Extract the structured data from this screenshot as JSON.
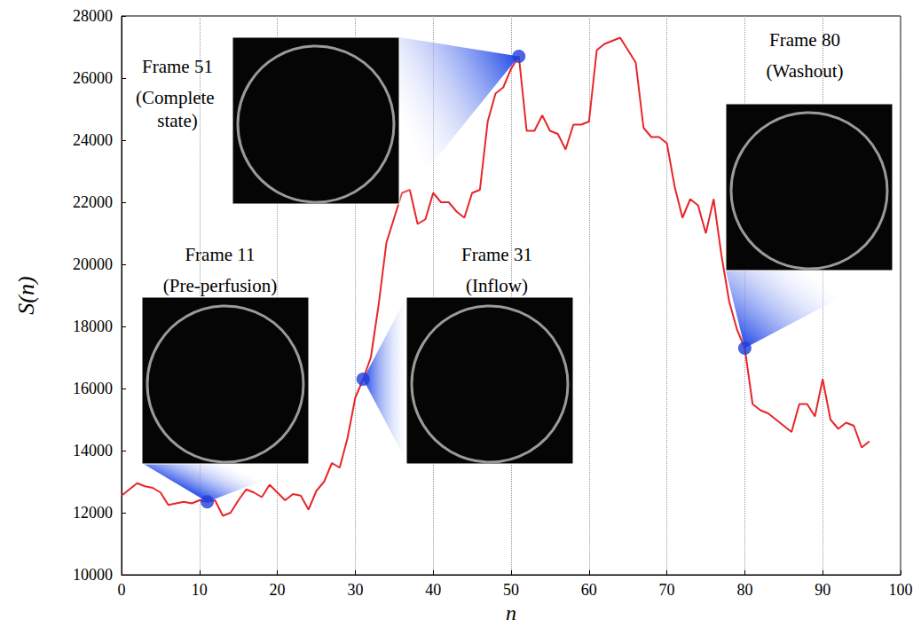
{
  "chart_data": {
    "type": "line",
    "x_label": "n",
    "y_label": "S(n)",
    "x": [
      0,
      1,
      2,
      3,
      4,
      5,
      6,
      7,
      8,
      9,
      10,
      11,
      12,
      13,
      14,
      15,
      16,
      17,
      18,
      19,
      20,
      21,
      22,
      23,
      24,
      25,
      26,
      27,
      28,
      29,
      30,
      31,
      32,
      33,
      34,
      35,
      36,
      37,
      38,
      39,
      40,
      41,
      42,
      43,
      44,
      45,
      46,
      47,
      48,
      49,
      50,
      51,
      52,
      53,
      54,
      55,
      56,
      57,
      58,
      59,
      60,
      61,
      62,
      63,
      64,
      65,
      66,
      67,
      68,
      69,
      70,
      71,
      72,
      73,
      74,
      75,
      76,
      77,
      78,
      79,
      80,
      81,
      82,
      83,
      84,
      85,
      86,
      87,
      88,
      89,
      90,
      91,
      92,
      93,
      94,
      95,
      96
    ],
    "values": [
      12550,
      12750,
      12950,
      12850,
      12800,
      12650,
      12250,
      12300,
      12350,
      12300,
      12400,
      12350,
      12400,
      11900,
      12000,
      12400,
      12750,
      12650,
      12500,
      12900,
      12650,
      12400,
      12600,
      12550,
      12100,
      12700,
      13000,
      13600,
      13450,
      14400,
      15700,
      16300,
      17000,
      18700,
      20700,
      21500,
      22300,
      22400,
      21300,
      21450,
      22300,
      22000,
      22000,
      21700,
      21500,
      22300,
      22400,
      24600,
      25500,
      25700,
      26300,
      26700,
      24300,
      24300,
      24800,
      24300,
      24200,
      23700,
      24500,
      24500,
      24600,
      26900,
      27100,
      27200,
      27300,
      26900,
      26500,
      24400,
      24100,
      24100,
      23900,
      22500,
      21500,
      22100,
      21900,
      21000,
      22100,
      20300,
      18800,
      17900,
      17300,
      15500,
      15300,
      15200,
      15000,
      14800,
      14600,
      15500,
      15500,
      15100,
      16300,
      15000,
      14700,
      14900,
      14800,
      14100,
      14300
    ],
    "color": "#e8262a",
    "xlim": [
      0,
      100
    ],
    "xticks": [
      0,
      10,
      20,
      30,
      40,
      50,
      60,
      70,
      80,
      90,
      100
    ],
    "ylim": [
      10000,
      28000
    ],
    "yticks": [
      10000,
      12000,
      14000,
      16000,
      18000,
      20000,
      22000,
      24000,
      26000,
      28000
    ],
    "grid": "x",
    "markers": {
      "color": "#1f3fdc",
      "points": [
        {
          "n": 11,
          "label": "Frame 11",
          "phase": "(Pre-perfusion)"
        },
        {
          "n": 31,
          "label": "Frame 31",
          "phase": "(Inflow)"
        },
        {
          "n": 51,
          "label": "Frame 51",
          "phase": "(Complete state)"
        },
        {
          "n": 80,
          "label": "Frame 80",
          "phase": "(Washout)"
        }
      ]
    }
  }
}
